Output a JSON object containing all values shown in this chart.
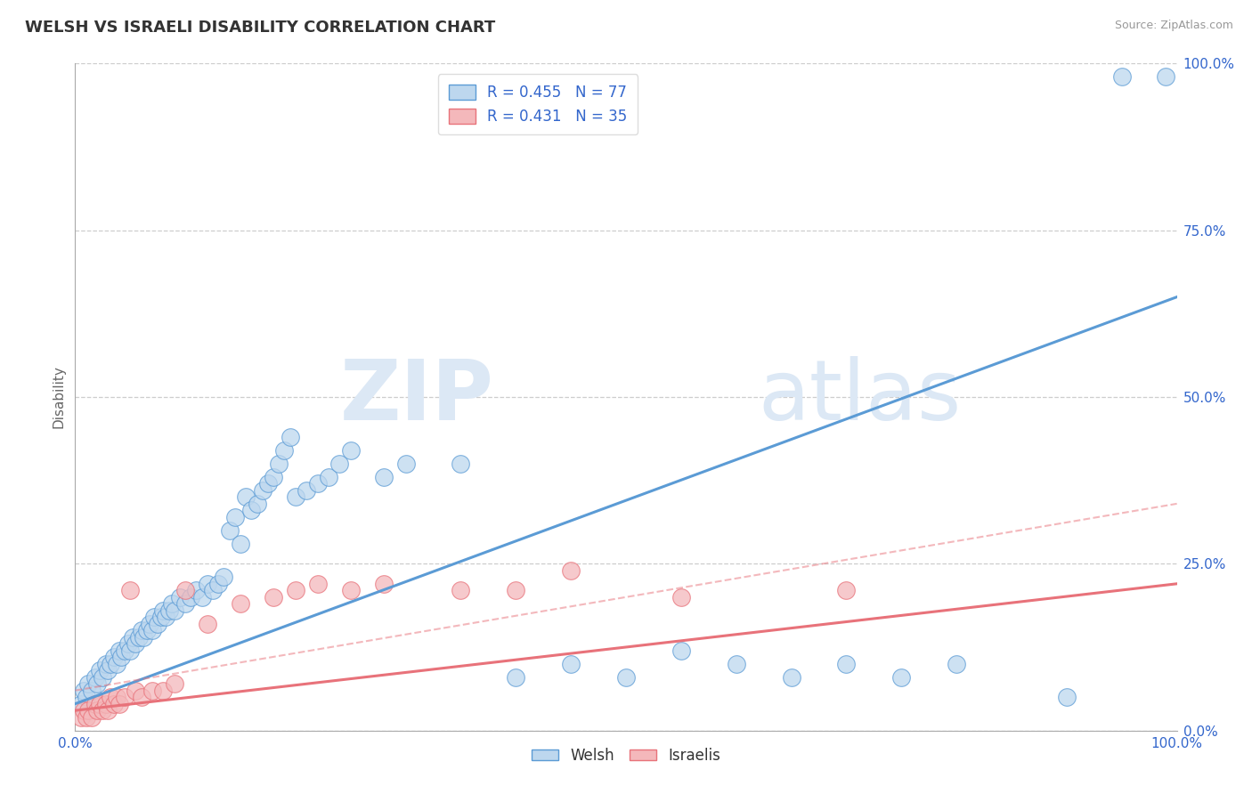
{
  "title": "WELSH VS ISRAELI DISABILITY CORRELATION CHART",
  "source": "Source: ZipAtlas.com",
  "xlabel": "",
  "ylabel": "Disability",
  "xlim": [
    0.0,
    1.0
  ],
  "ylim": [
    0.0,
    1.0
  ],
  "xtick_positions": [
    0.0,
    1.0
  ],
  "xtick_labels": [
    "0.0%",
    "100.0%"
  ],
  "ytick_positions": [
    0.0,
    0.25,
    0.5,
    0.75,
    1.0
  ],
  "ytick_labels": [
    "0.0%",
    "25.0%",
    "50.0%",
    "75.0%",
    "100.0%"
  ],
  "welsh_R": 0.455,
  "welsh_N": 77,
  "israeli_R": 0.431,
  "israeli_N": 35,
  "welsh_color": "#5b9bd5",
  "welsh_fill": "#bdd7ee",
  "israeli_color": "#e8727a",
  "israeli_fill": "#f4b8bb",
  "watermark_zip": "ZIP",
  "watermark_atlas": "atlas",
  "background_color": "#ffffff",
  "welsh_points": [
    [
      0.005,
      0.04
    ],
    [
      0.008,
      0.06
    ],
    [
      0.01,
      0.05
    ],
    [
      0.012,
      0.07
    ],
    [
      0.015,
      0.06
    ],
    [
      0.018,
      0.08
    ],
    [
      0.02,
      0.07
    ],
    [
      0.022,
      0.09
    ],
    [
      0.025,
      0.08
    ],
    [
      0.028,
      0.1
    ],
    [
      0.03,
      0.09
    ],
    [
      0.032,
      0.1
    ],
    [
      0.035,
      0.11
    ],
    [
      0.038,
      0.1
    ],
    [
      0.04,
      0.12
    ],
    [
      0.042,
      0.11
    ],
    [
      0.045,
      0.12
    ],
    [
      0.048,
      0.13
    ],
    [
      0.05,
      0.12
    ],
    [
      0.052,
      0.14
    ],
    [
      0.055,
      0.13
    ],
    [
      0.058,
      0.14
    ],
    [
      0.06,
      0.15
    ],
    [
      0.062,
      0.14
    ],
    [
      0.065,
      0.15
    ],
    [
      0.068,
      0.16
    ],
    [
      0.07,
      0.15
    ],
    [
      0.072,
      0.17
    ],
    [
      0.075,
      0.16
    ],
    [
      0.078,
      0.17
    ],
    [
      0.08,
      0.18
    ],
    [
      0.082,
      0.17
    ],
    [
      0.085,
      0.18
    ],
    [
      0.088,
      0.19
    ],
    [
      0.09,
      0.18
    ],
    [
      0.095,
      0.2
    ],
    [
      0.1,
      0.19
    ],
    [
      0.105,
      0.2
    ],
    [
      0.11,
      0.21
    ],
    [
      0.115,
      0.2
    ],
    [
      0.12,
      0.22
    ],
    [
      0.125,
      0.21
    ],
    [
      0.13,
      0.22
    ],
    [
      0.135,
      0.23
    ],
    [
      0.14,
      0.3
    ],
    [
      0.145,
      0.32
    ],
    [
      0.15,
      0.28
    ],
    [
      0.155,
      0.35
    ],
    [
      0.16,
      0.33
    ],
    [
      0.165,
      0.34
    ],
    [
      0.17,
      0.36
    ],
    [
      0.175,
      0.37
    ],
    [
      0.18,
      0.38
    ],
    [
      0.185,
      0.4
    ],
    [
      0.19,
      0.42
    ],
    [
      0.195,
      0.44
    ],
    [
      0.2,
      0.35
    ],
    [
      0.21,
      0.36
    ],
    [
      0.22,
      0.37
    ],
    [
      0.23,
      0.38
    ],
    [
      0.24,
      0.4
    ],
    [
      0.25,
      0.42
    ],
    [
      0.28,
      0.38
    ],
    [
      0.3,
      0.4
    ],
    [
      0.35,
      0.4
    ],
    [
      0.4,
      0.08
    ],
    [
      0.45,
      0.1
    ],
    [
      0.5,
      0.08
    ],
    [
      0.55,
      0.12
    ],
    [
      0.6,
      0.1
    ],
    [
      0.65,
      0.08
    ],
    [
      0.7,
      0.1
    ],
    [
      0.75,
      0.08
    ],
    [
      0.8,
      0.1
    ],
    [
      0.9,
      0.05
    ],
    [
      0.95,
      0.98
    ],
    [
      0.99,
      0.98
    ]
  ],
  "israeli_points": [
    [
      0.005,
      0.02
    ],
    [
      0.008,
      0.03
    ],
    [
      0.01,
      0.02
    ],
    [
      0.012,
      0.03
    ],
    [
      0.015,
      0.02
    ],
    [
      0.018,
      0.04
    ],
    [
      0.02,
      0.03
    ],
    [
      0.022,
      0.04
    ],
    [
      0.025,
      0.03
    ],
    [
      0.028,
      0.04
    ],
    [
      0.03,
      0.03
    ],
    [
      0.032,
      0.05
    ],
    [
      0.035,
      0.04
    ],
    [
      0.038,
      0.05
    ],
    [
      0.04,
      0.04
    ],
    [
      0.045,
      0.05
    ],
    [
      0.05,
      0.21
    ],
    [
      0.055,
      0.06
    ],
    [
      0.06,
      0.05
    ],
    [
      0.07,
      0.06
    ],
    [
      0.08,
      0.06
    ],
    [
      0.09,
      0.07
    ],
    [
      0.1,
      0.21
    ],
    [
      0.12,
      0.16
    ],
    [
      0.15,
      0.19
    ],
    [
      0.18,
      0.2
    ],
    [
      0.2,
      0.21
    ],
    [
      0.22,
      0.22
    ],
    [
      0.25,
      0.21
    ],
    [
      0.28,
      0.22
    ],
    [
      0.35,
      0.21
    ],
    [
      0.4,
      0.21
    ],
    [
      0.45,
      0.24
    ],
    [
      0.55,
      0.2
    ],
    [
      0.7,
      0.21
    ]
  ],
  "welsh_trend": [
    0.0,
    1.0,
    0.04,
    0.65
  ],
  "israeli_trend": [
    0.0,
    1.0,
    0.03,
    0.22
  ],
  "israeli_dashed": [
    0.0,
    1.0,
    0.06,
    0.34
  ]
}
